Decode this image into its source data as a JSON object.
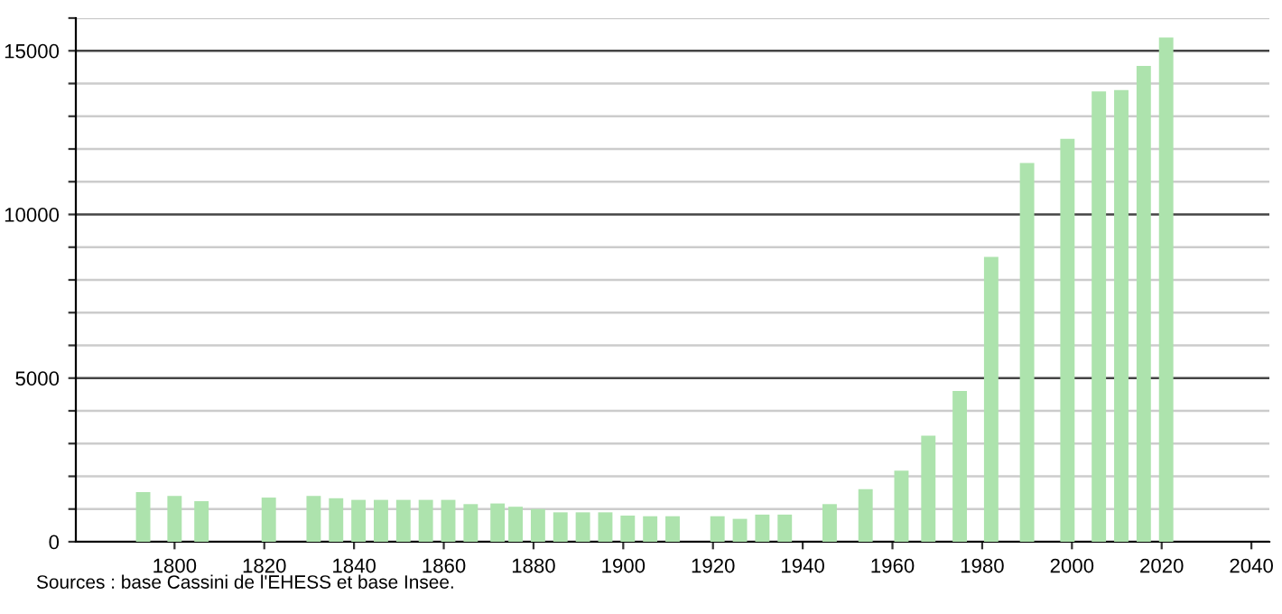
{
  "chart_data": {
    "type": "bar",
    "x": [
      1793,
      1800,
      1806,
      1821,
      1831,
      1836,
      1841,
      1846,
      1851,
      1856,
      1861,
      1866,
      1872,
      1876,
      1881,
      1886,
      1891,
      1896,
      1901,
      1906,
      1911,
      1921,
      1926,
      1931,
      1936,
      1946,
      1954,
      1962,
      1968,
      1975,
      1982,
      1990,
      1999,
      2006,
      2011,
      2016,
      2021
    ],
    "values": [
      1520,
      1400,
      1240,
      1350,
      1400,
      1330,
      1280,
      1280,
      1280,
      1280,
      1280,
      1150,
      1170,
      1070,
      1000,
      900,
      900,
      900,
      800,
      780,
      780,
      780,
      700,
      830,
      830,
      1150,
      1610,
      2170,
      3240,
      4610,
      8700,
      11570,
      12310,
      13760,
      13800,
      14540,
      15410
    ],
    "color": "#ade3ad",
    "xlim": [
      1778,
      2044
    ],
    "xticks": [
      1800,
      1820,
      1840,
      1860,
      1880,
      1900,
      1920,
      1940,
      1960,
      1980,
      2000,
      2020,
      2040
    ],
    "ylim": [
      0,
      16000
    ],
    "yticks": [
      0,
      {
        "value": 1000,
        "label": null
      },
      {
        "value": 2000,
        "label": null
      },
      {
        "value": 3000,
        "label": null
      },
      {
        "value": 4000,
        "label": null
      },
      5000,
      {
        "value": 6000,
        "label": null
      },
      {
        "value": 7000,
        "label": null
      },
      {
        "value": 8000,
        "label": null
      },
      {
        "value": 9000,
        "label": null
      },
      10000,
      {
        "value": 11000,
        "label": null
      },
      {
        "value": 12000,
        "label": null
      },
      {
        "value": 13000,
        "label": null
      },
      {
        "value": 14000,
        "label": null
      },
      15000,
      {
        "value": 16000,
        "label": null
      }
    ],
    "grid": "y",
    "annotations": [
      "Sources : base Cassini de l'EHESS et base Insee."
    ]
  }
}
